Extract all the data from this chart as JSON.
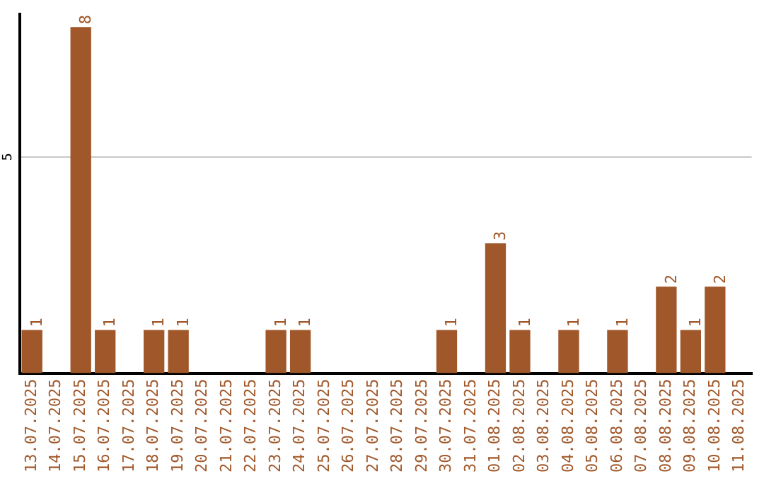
{
  "chart_data": {
    "type": "bar",
    "categories": [
      "13.07.2025",
      "14.07.2025",
      "15.07.2025",
      "16.07.2025",
      "17.07.2025",
      "18.07.2025",
      "19.07.2025",
      "20.07.2025",
      "21.07.2025",
      "22.07.2025",
      "23.07.2025",
      "24.07.2025",
      "25.07.2025",
      "26.07.2025",
      "27.07.2025",
      "28.07.2025",
      "29.07.2025",
      "30.07.2025",
      "31.07.2025",
      "01.08.2025",
      "02.08.2025",
      "03.08.2025",
      "04.08.2025",
      "05.08.2025",
      "06.08.2025",
      "07.08.2025",
      "08.08.2025",
      "09.08.2025",
      "10.08.2025",
      "11.08.2025"
    ],
    "values": [
      1,
      0,
      8,
      1,
      0,
      1,
      1,
      0,
      0,
      0,
      1,
      1,
      0,
      0,
      0,
      0,
      0,
      1,
      0,
      3,
      1,
      0,
      1,
      0,
      1,
      0,
      2,
      1,
      2,
      0
    ],
    "value_labels": [
      "1",
      null,
      "8",
      "1",
      null,
      "1",
      "1",
      null,
      null,
      null,
      "1",
      "1",
      null,
      null,
      null,
      null,
      null,
      "1",
      null,
      "3",
      "1",
      null,
      "1",
      null,
      "1",
      null,
      "2",
      "1",
      "2",
      null
    ],
    "color": "#a0582a",
    "ylim": [
      0,
      8.3
    ],
    "yticks": [
      5
    ],
    "grid": "y",
    "legend": false
  }
}
